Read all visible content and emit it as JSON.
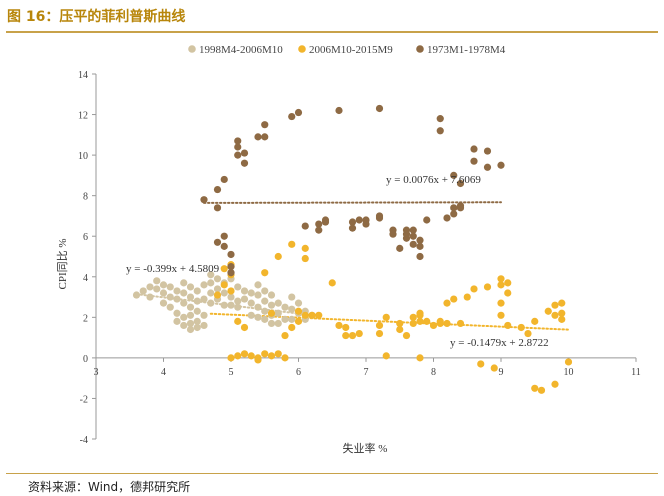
{
  "figure_title": "图 16：压平的菲利普斯曲线",
  "source_note": "资料来源：Wind，德邦研究所",
  "chart_data": {
    "type": "scatter",
    "xlabel": "失业率 %",
    "ylabel": "CPI同比 %",
    "xlim": [
      3,
      11
    ],
    "ylim": [
      -4,
      14
    ],
    "x_ticks": [
      3,
      4,
      5,
      6,
      7,
      8,
      9,
      10,
      11
    ],
    "y_ticks": [
      -4,
      -2,
      0,
      2,
      4,
      6,
      8,
      10,
      12,
      14
    ],
    "grid": false,
    "legend_position": "top-center",
    "colors": {
      "s1": "#d2c4a2",
      "s2": "#f2b52c",
      "s3": "#8e6a44"
    },
    "series": [
      {
        "name": "1998M4-2006M10",
        "color": "#d2c4a2",
        "points": [
          [
            3.6,
            3.1
          ],
          [
            3.7,
            3.3
          ],
          [
            3.8,
            3.5
          ],
          [
            3.8,
            3.0
          ],
          [
            3.9,
            3.4
          ],
          [
            3.9,
            3.8
          ],
          [
            4.0,
            3.6
          ],
          [
            4.0,
            3.2
          ],
          [
            4.0,
            2.7
          ],
          [
            4.1,
            3.5
          ],
          [
            4.1,
            3.0
          ],
          [
            4.1,
            2.5
          ],
          [
            4.2,
            3.3
          ],
          [
            4.2,
            2.9
          ],
          [
            4.2,
            2.2
          ],
          [
            4.2,
            1.8
          ],
          [
            4.3,
            3.7
          ],
          [
            4.3,
            3.2
          ],
          [
            4.3,
            2.7
          ],
          [
            4.3,
            2.0
          ],
          [
            4.3,
            1.6
          ],
          [
            4.4,
            3.5
          ],
          [
            4.4,
            3.0
          ],
          [
            4.4,
            2.5
          ],
          [
            4.4,
            2.1
          ],
          [
            4.4,
            1.7
          ],
          [
            4.4,
            1.4
          ],
          [
            4.5,
            3.3
          ],
          [
            4.5,
            2.8
          ],
          [
            4.5,
            2.3
          ],
          [
            4.5,
            1.8
          ],
          [
            4.5,
            1.5
          ],
          [
            4.6,
            3.6
          ],
          [
            4.6,
            2.9
          ],
          [
            4.6,
            2.1
          ],
          [
            4.6,
            1.6
          ],
          [
            4.7,
            4.1
          ],
          [
            4.7,
            3.7
          ],
          [
            4.7,
            3.2
          ],
          [
            4.7,
            2.7
          ],
          [
            4.8,
            3.9
          ],
          [
            4.8,
            3.4
          ],
          [
            4.8,
            2.9
          ],
          [
            4.9,
            3.7
          ],
          [
            4.9,
            3.2
          ],
          [
            4.9,
            2.6
          ],
          [
            5.0,
            3.9
          ],
          [
            5.0,
            3.0
          ],
          [
            5.0,
            2.6
          ],
          [
            5.1,
            3.5
          ],
          [
            5.1,
            2.8
          ],
          [
            5.1,
            2.5
          ],
          [
            5.2,
            3.3
          ],
          [
            5.2,
            2.9
          ],
          [
            5.3,
            3.2
          ],
          [
            5.3,
            2.7
          ],
          [
            5.3,
            2.1
          ],
          [
            5.4,
            3.6
          ],
          [
            5.4,
            3.1
          ],
          [
            5.4,
            2.5
          ],
          [
            5.4,
            2.0
          ],
          [
            5.5,
            3.3
          ],
          [
            5.5,
            2.8
          ],
          [
            5.5,
            2.3
          ],
          [
            5.5,
            1.9
          ],
          [
            5.6,
            3.1
          ],
          [
            5.6,
            2.6
          ],
          [
            5.6,
            2.1
          ],
          [
            5.6,
            1.7
          ],
          [
            5.7,
            2.7
          ],
          [
            5.7,
            2.2
          ],
          [
            5.7,
            1.7
          ],
          [
            5.8,
            2.5
          ],
          [
            5.8,
            1.9
          ],
          [
            5.9,
            3.0
          ],
          [
            5.9,
            2.4
          ],
          [
            5.9,
            1.9
          ],
          [
            6.0,
            2.7
          ],
          [
            6.0,
            2.2
          ],
          [
            6.1,
            2.3
          ],
          [
            6.1,
            1.9
          ],
          [
            6.2,
            2.1
          ]
        ]
      },
      {
        "name": "2006M10-2015M9",
        "color": "#f2b52c",
        "points": [
          [
            4.8,
            3.1
          ],
          [
            4.9,
            3.6
          ],
          [
            4.9,
            4.4
          ],
          [
            5.0,
            3.3
          ],
          [
            5.0,
            4.1
          ],
          [
            5.0,
            4.6
          ],
          [
            5.0,
            0.0
          ],
          [
            5.1,
            0.1
          ],
          [
            5.1,
            1.8
          ],
          [
            5.2,
            1.5
          ],
          [
            5.2,
            0.2
          ],
          [
            5.3,
            0.1
          ],
          [
            5.4,
            0.0
          ],
          [
            5.4,
            -0.1
          ],
          [
            5.5,
            0.2
          ],
          [
            5.5,
            4.2
          ],
          [
            5.6,
            2.2
          ],
          [
            5.6,
            0.1
          ],
          [
            5.7,
            0.2
          ],
          [
            5.7,
            5.0
          ],
          [
            5.8,
            0.0
          ],
          [
            5.8,
            1.1
          ],
          [
            5.9,
            5.6
          ],
          [
            5.9,
            1.5
          ],
          [
            6.0,
            1.8
          ],
          [
            6.0,
            2.3
          ],
          [
            6.1,
            2.1
          ],
          [
            6.1,
            5.4
          ],
          [
            6.1,
            4.9
          ],
          [
            6.2,
            2.1
          ],
          [
            6.3,
            2.1
          ],
          [
            6.5,
            3.7
          ],
          [
            6.6,
            1.6
          ],
          [
            6.7,
            1.5
          ],
          [
            6.7,
            1.1
          ],
          [
            6.8,
            1.1
          ],
          [
            6.9,
            1.2
          ],
          [
            7.2,
            1.2
          ],
          [
            7.2,
            1.6
          ],
          [
            7.3,
            2.0
          ],
          [
            7.3,
            0.1
          ],
          [
            7.5,
            1.7
          ],
          [
            7.5,
            1.4
          ],
          [
            7.6,
            1.1
          ],
          [
            7.7,
            1.7
          ],
          [
            7.7,
            2.0
          ],
          [
            7.8,
            1.8
          ],
          [
            7.8,
            2.1
          ],
          [
            7.8,
            2.2
          ],
          [
            7.8,
            0.0
          ],
          [
            7.9,
            1.8
          ],
          [
            8.0,
            1.6
          ],
          [
            8.1,
            1.7
          ],
          [
            8.1,
            1.8
          ],
          [
            8.2,
            1.7
          ],
          [
            8.2,
            2.7
          ],
          [
            8.3,
            2.9
          ],
          [
            8.4,
            1.7
          ],
          [
            8.5,
            3.0
          ],
          [
            8.6,
            3.4
          ],
          [
            8.7,
            -0.3
          ],
          [
            8.8,
            3.5
          ],
          [
            8.9,
            -0.5
          ],
          [
            9.0,
            2.7
          ],
          [
            9.0,
            2.1
          ],
          [
            9.0,
            3.9
          ],
          [
            9.0,
            3.6
          ],
          [
            9.1,
            3.7
          ],
          [
            9.1,
            3.2
          ],
          [
            9.1,
            1.6
          ],
          [
            9.3,
            1.5
          ],
          [
            9.4,
            1.2
          ],
          [
            9.5,
            1.8
          ],
          [
            9.5,
            -1.5
          ],
          [
            9.6,
            -1.6
          ],
          [
            9.7,
            2.3
          ],
          [
            9.8,
            2.6
          ],
          [
            9.8,
            2.1
          ],
          [
            9.8,
            -1.3
          ],
          [
            9.9,
            2.7
          ],
          [
            9.9,
            2.2
          ],
          [
            9.9,
            1.9
          ],
          [
            10.0,
            -0.2
          ]
        ]
      },
      {
        "name": "1973M1-1978M4",
        "color": "#8e6a44",
        "points": [
          [
            4.6,
            7.8
          ],
          [
            4.8,
            8.3
          ],
          [
            4.9,
            8.8
          ],
          [
            4.8,
            5.7
          ],
          [
            4.8,
            7.4
          ],
          [
            4.9,
            5.5
          ],
          [
            4.9,
            6.0
          ],
          [
            5.0,
            5.1
          ],
          [
            5.0,
            4.5
          ],
          [
            5.0,
            4.2
          ],
          [
            5.1,
            10.0
          ],
          [
            5.1,
            10.4
          ],
          [
            5.1,
            10.7
          ],
          [
            5.2,
            10.1
          ],
          [
            5.2,
            9.6
          ],
          [
            5.4,
            10.9
          ],
          [
            5.5,
            11.5
          ],
          [
            5.5,
            10.9
          ],
          [
            5.9,
            11.9
          ],
          [
            6.0,
            12.1
          ],
          [
            6.1,
            6.5
          ],
          [
            6.3,
            6.3
          ],
          [
            6.3,
            6.6
          ],
          [
            6.4,
            6.7
          ],
          [
            6.4,
            6.8
          ],
          [
            6.6,
            12.2
          ],
          [
            6.8,
            6.4
          ],
          [
            6.8,
            6.7
          ],
          [
            6.9,
            6.8
          ],
          [
            7.0,
            6.6
          ],
          [
            7.0,
            6.8
          ],
          [
            7.2,
            6.9
          ],
          [
            7.2,
            7.0
          ],
          [
            7.2,
            12.3
          ],
          [
            7.4,
            6.3
          ],
          [
            7.4,
            6.1
          ],
          [
            7.5,
            5.4
          ],
          [
            7.6,
            5.9
          ],
          [
            7.6,
            6.1
          ],
          [
            7.6,
            6.3
          ],
          [
            7.7,
            5.6
          ],
          [
            7.7,
            6.0
          ],
          [
            7.7,
            6.3
          ],
          [
            7.8,
            5.0
          ],
          [
            7.8,
            5.5
          ],
          [
            7.8,
            5.8
          ],
          [
            7.9,
            6.8
          ],
          [
            8.1,
            11.8
          ],
          [
            8.1,
            11.2
          ],
          [
            8.2,
            6.9
          ],
          [
            8.3,
            7.1
          ],
          [
            8.3,
            7.4
          ],
          [
            8.3,
            9.0
          ],
          [
            8.4,
            7.5
          ],
          [
            8.4,
            8.6
          ],
          [
            8.4,
            7.4
          ],
          [
            8.6,
            9.7
          ],
          [
            8.6,
            10.3
          ],
          [
            8.8,
            9.4
          ],
          [
            8.8,
            10.2
          ],
          [
            9.0,
            9.5
          ]
        ]
      }
    ],
    "trendlines": [
      {
        "series": "1998M4-2006M10",
        "equation": "y = -0.399x + 4.5809",
        "slope": -0.399,
        "intercept": 4.5809,
        "x_range": [
          3.6,
          6.2
        ]
      },
      {
        "series": "2006M10-2015M9",
        "equation": "y = -0.1479x + 2.8722",
        "slope": -0.1479,
        "intercept": 2.8722,
        "x_range": [
          4.7,
          10.0
        ]
      },
      {
        "series": "1973M1-1978M4",
        "equation": "y = 0.0076x + 7.6069",
        "slope": 0.0076,
        "intercept": 7.6069,
        "x_range": [
          4.6,
          9.0
        ]
      }
    ]
  }
}
